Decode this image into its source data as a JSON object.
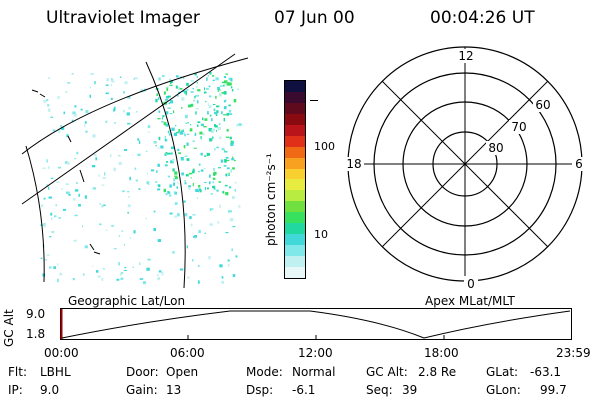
{
  "header": {
    "instrument": "Ultraviolet Imager",
    "date": "07 Jun 00",
    "time": "00:04:26 UT"
  },
  "colorbar": {
    "label": "photon cm⁻²s⁻¹",
    "ticks": [
      "100",
      "10"
    ],
    "colors": [
      "#101040",
      "#3a0b2e",
      "#600a1e",
      "#8a0a12",
      "#b8141a",
      "#e0301a",
      "#f06a16",
      "#f8a020",
      "#f8d030",
      "#e8ec40",
      "#b8ec40",
      "#70e040",
      "#38e060",
      "#20d8a0",
      "#40d8d8",
      "#80e8e8",
      "#c0f0f0",
      "#e8f8f8"
    ]
  },
  "polar": {
    "mlt_labels": {
      "top": "12",
      "bottom": "0",
      "left": "18",
      "right": "6"
    },
    "lat_labels": [
      "60",
      "70",
      "80"
    ]
  },
  "timeline": {
    "left_label": "Geographic Lat/Lon",
    "right_label": "Apex MLat/MLT",
    "axis_title": "GC Alt",
    "y_ticks": [
      "9.0",
      "1.8"
    ],
    "x_ticks": [
      "00:00",
      "06:00",
      "12:00",
      "18:00",
      "23:59"
    ]
  },
  "info": {
    "flt_label": "Flt:",
    "flt_value": "LBHL",
    "ip_label": "IP:",
    "ip_value": "9.0",
    "door_label": "Door:",
    "door_value": "Open",
    "gain_label": "Gain:",
    "gain_value": "13",
    "mode_label": "Mode:",
    "mode_value": "Normal",
    "dsp_label": "Dsp:",
    "dsp_value": "-6.1",
    "gcalt_label": "GC Alt:",
    "gcalt_value": "2.8 Re",
    "seq_label": "Seq:",
    "seq_value": "39",
    "glat_label": "GLat:",
    "glat_value": "-63.1",
    "glon_label": "GLon:",
    "glon_value": "99.7"
  }
}
